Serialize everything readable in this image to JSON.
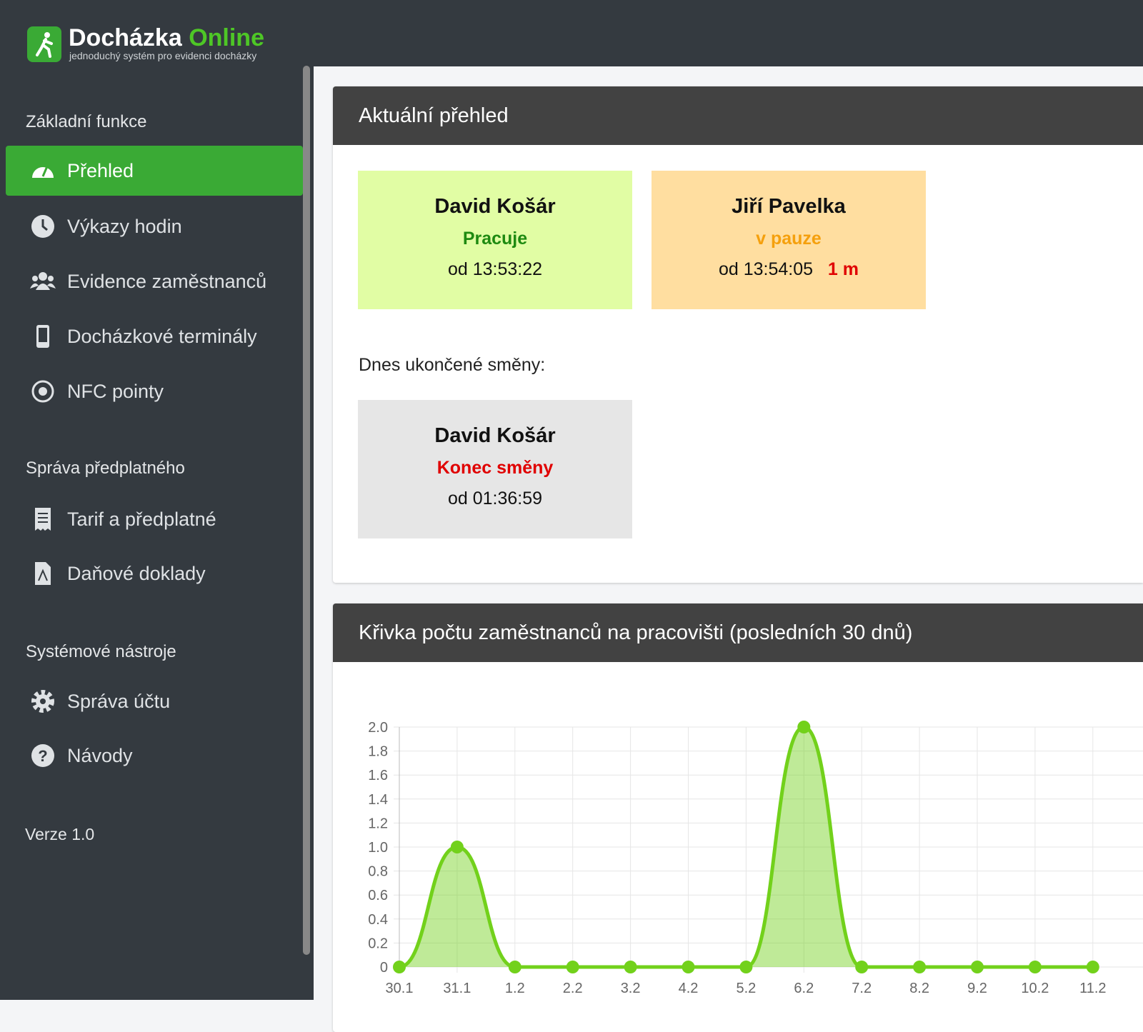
{
  "sidebar": {
    "logo": {
      "name": "Docházka",
      "accent": "Online",
      "tagline": "jednoduchý systém pro evidenci docházky"
    },
    "sections": [
      {
        "title": "Základní funkce",
        "items": [
          "Přehled",
          "Výkazy hodin",
          "Evidence zaměstnanců",
          "Docházkové terminály",
          "NFC pointy"
        ]
      },
      {
        "title": "Správa předplatného",
        "items": [
          "Tarif a předplatné",
          "Daňové doklady"
        ]
      },
      {
        "title": "Systémové nástroje",
        "items": [
          "Správa účtu",
          "Návody"
        ]
      }
    ],
    "version": "Verze 1.0"
  },
  "overview": {
    "title": "Aktuální přehled",
    "active": [
      {
        "name": "David Košár",
        "status": "Pracuje",
        "since": "od 13:53:22"
      },
      {
        "name": "Jiří Pavelka",
        "status": "v pauze",
        "since": "od 13:54:05",
        "duration": "1 m"
      }
    ],
    "finished_label": "Dnes ukončené směny:",
    "finished": [
      {
        "name": "David Košár",
        "status": "Konec směny",
        "since": "od 01:36:59"
      }
    ]
  },
  "chart_data": {
    "type": "line",
    "title": "Křivka počtu zaměstnanců na pracovišti (posledních 30 dnů)",
    "categories": [
      "30.1",
      "31.1",
      "1.2",
      "2.2",
      "3.2",
      "4.2",
      "5.2",
      "6.2",
      "7.2",
      "8.2",
      "9.2",
      "10.2",
      "11.2"
    ],
    "values": [
      0,
      1,
      0,
      0,
      0,
      0,
      0,
      2,
      0,
      0,
      0,
      0,
      0
    ],
    "color": "#72d11b",
    "fill": true,
    "grid": true,
    "ylim": [
      0,
      2
    ],
    "yticks": [
      0,
      0.2,
      0.4,
      0.6,
      0.8,
      {
        "value": 1,
        "label": "1.0"
      },
      1.2,
      1.4,
      1.6,
      1.8,
      {
        "value": 2,
        "label": "2.0"
      }
    ]
  }
}
